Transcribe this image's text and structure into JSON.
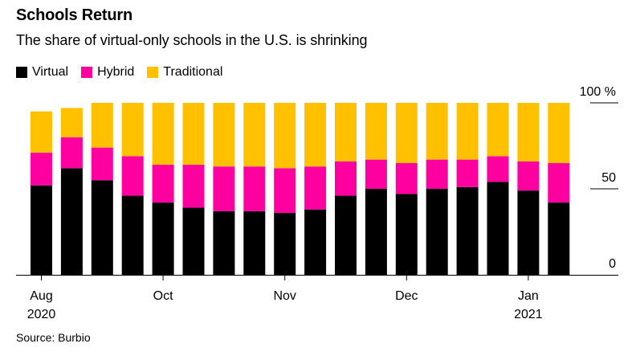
{
  "title": "Schools Return",
  "subtitle": "The share of virtual-only schools in the U.S. is shrinking",
  "source": "Source: Burbio",
  "legend": [
    {
      "label": "Virtual",
      "color": "#000000"
    },
    {
      "label": "Hybrid",
      "color": "#ff00a0"
    },
    {
      "label": "Traditional",
      "color": "#ffc000"
    }
  ],
  "chart_data": {
    "type": "bar",
    "stacked": true,
    "title": "Schools Return",
    "subtitle": "The share of virtual-only schools in the U.S. is shrinking",
    "xlabel": "",
    "ylabel": "",
    "ylim": [
      0,
      100
    ],
    "y_ticks": [
      {
        "value": 100,
        "label": "100 %"
      },
      {
        "value": 50,
        "label": "50"
      },
      {
        "value": 0,
        "label": "0"
      }
    ],
    "x_tick_labels": [
      {
        "bar_index": 0,
        "label": "Aug",
        "sublabel": "2020"
      },
      {
        "bar_index": 4,
        "label": "Oct",
        "sublabel": ""
      },
      {
        "bar_index": 8,
        "label": "Nov",
        "sublabel": ""
      },
      {
        "bar_index": 12,
        "label": "Dec",
        "sublabel": ""
      },
      {
        "bar_index": 16,
        "label": "Jan",
        "sublabel": "2021"
      }
    ],
    "bar_count": 18,
    "series": [
      {
        "name": "Virtual",
        "color": "#000000",
        "values": [
          52,
          62,
          55,
          46,
          42,
          39,
          37,
          37,
          36,
          38,
          46,
          50,
          47,
          50,
          51,
          54,
          49,
          42
        ]
      },
      {
        "name": "Hybrid",
        "color": "#ff00a0",
        "values": [
          19,
          18,
          19,
          23,
          22,
          25,
          26,
          26,
          26,
          25,
          20,
          17,
          18,
          17,
          16,
          15,
          17,
          23
        ]
      },
      {
        "name": "Traditional",
        "color": "#ffc000",
        "values": [
          24,
          17,
          26,
          31,
          36,
          36,
          37,
          37,
          38,
          37,
          34,
          33,
          35,
          33,
          33,
          31,
          34,
          35
        ]
      }
    ]
  }
}
